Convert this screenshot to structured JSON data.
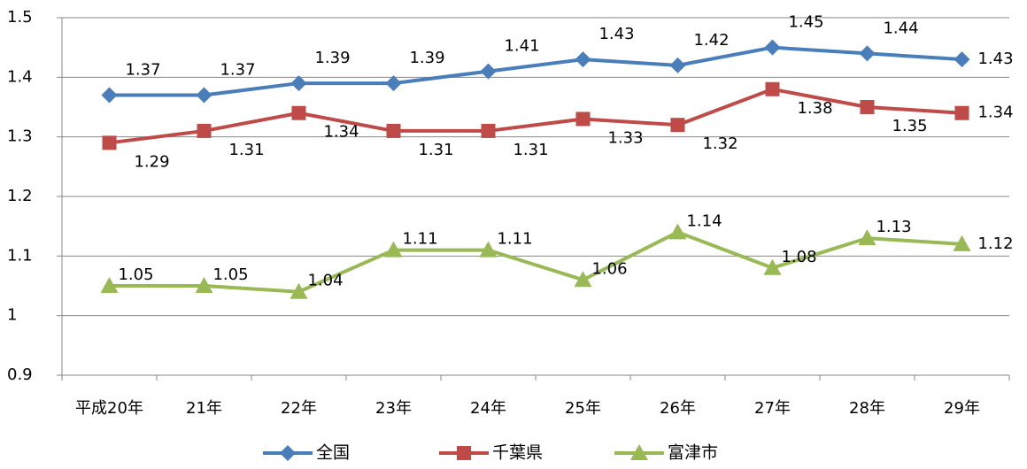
{
  "chart_data": {
    "type": "line",
    "categories": [
      "平成20年",
      "21年",
      "22年",
      "23年",
      "24年",
      "25年",
      "26年",
      "27年",
      "28年",
      "29年"
    ],
    "series": [
      {
        "name": "全国",
        "color": "#4a7ebb",
        "marker": "diamond",
        "values": [
          1.37,
          1.37,
          1.39,
          1.39,
          1.41,
          1.43,
          1.42,
          1.45,
          1.44,
          1.43
        ]
      },
      {
        "name": "千葉県",
        "color": "#be4b48",
        "marker": "square",
        "values": [
          1.29,
          1.31,
          1.34,
          1.31,
          1.31,
          1.33,
          1.32,
          1.38,
          1.35,
          1.34
        ]
      },
      {
        "name": "富津市",
        "color": "#98b954",
        "marker": "triangle",
        "values": [
          1.05,
          1.05,
          1.04,
          1.11,
          1.11,
          1.06,
          1.14,
          1.08,
          1.13,
          1.12
        ]
      }
    ],
    "ylim": [
      0.9,
      1.5
    ],
    "yticks": [
      0.9,
      1,
      1.1,
      1.2,
      1.3,
      1.4,
      1.5
    ],
    "grid": true,
    "legend": "bottom"
  }
}
